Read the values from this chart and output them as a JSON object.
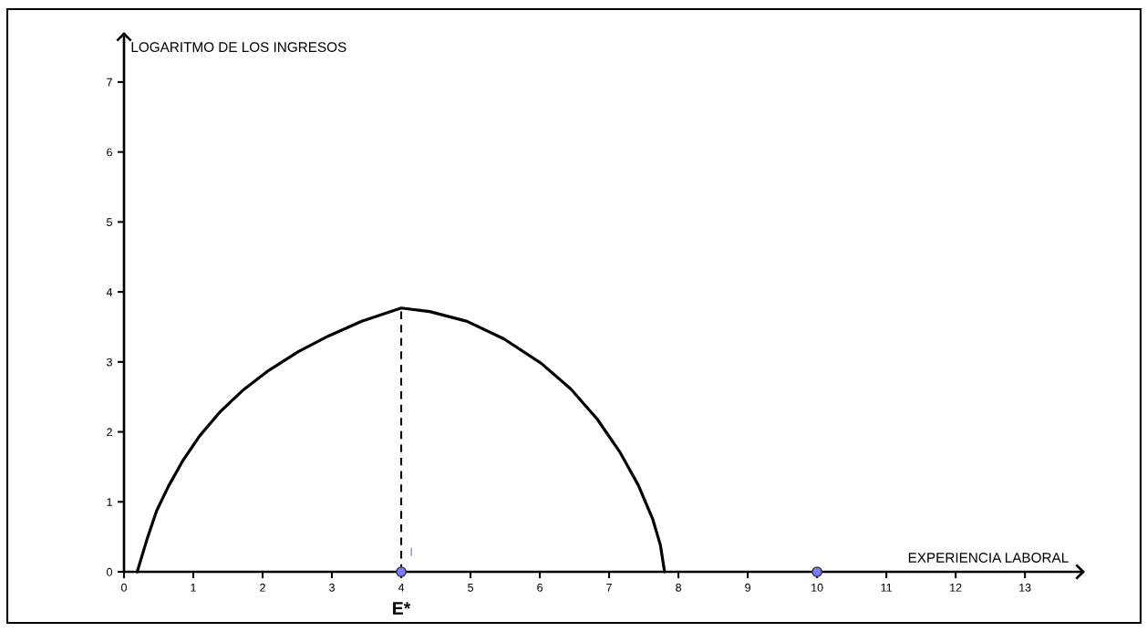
{
  "chart_data": {
    "type": "line",
    "xlabel": "EXPERIENCIA LABORAL",
    "ylabel": "LOGARITMO DE LOS INGRESOS",
    "xlim": [
      0,
      13.84
    ],
    "ylim": [
      0,
      7.69
    ],
    "xticks": [
      0,
      1,
      2,
      3,
      4,
      5,
      6,
      7,
      8,
      9,
      10,
      11,
      12,
      13
    ],
    "yticks": [
      0,
      1,
      2,
      3,
      4,
      5,
      6,
      7
    ],
    "series": [
      {
        "color": "#000000",
        "marker": "none",
        "line_style": "solid",
        "x": [
          0.19,
          0.34,
          0.47,
          0.64,
          0.85,
          1.09,
          1.39,
          1.71,
          2.09,
          2.52,
          2.95,
          3.43,
          4.0,
          4.41,
          4.95,
          5.48,
          6.02,
          6.45,
          6.83,
          7.15,
          7.42,
          7.63,
          7.74,
          7.8
        ],
        "values": [
          0,
          0.49,
          0.87,
          1.22,
          1.59,
          1.94,
          2.29,
          2.59,
          2.88,
          3.15,
          3.37,
          3.58,
          3.77,
          3.72,
          3.58,
          3.33,
          2.98,
          2.61,
          2.18,
          1.72,
          1.24,
          0.75,
          0.38,
          0
        ]
      },
      {
        "color": "#000000",
        "marker": "none",
        "line_style": "dashed",
        "x": [
          4,
          4
        ],
        "values": [
          0,
          3.77
        ]
      },
      {
        "type": "scatter",
        "color": "#7b7bff",
        "marker": "circle",
        "x": [
          4,
          10
        ],
        "values": [
          0,
          0
        ]
      }
    ],
    "annotations": [
      {
        "text": "E*",
        "x": 4,
        "y": 0
      },
      {
        "text": "I",
        "x": 4,
        "y": 0
      }
    ]
  }
}
